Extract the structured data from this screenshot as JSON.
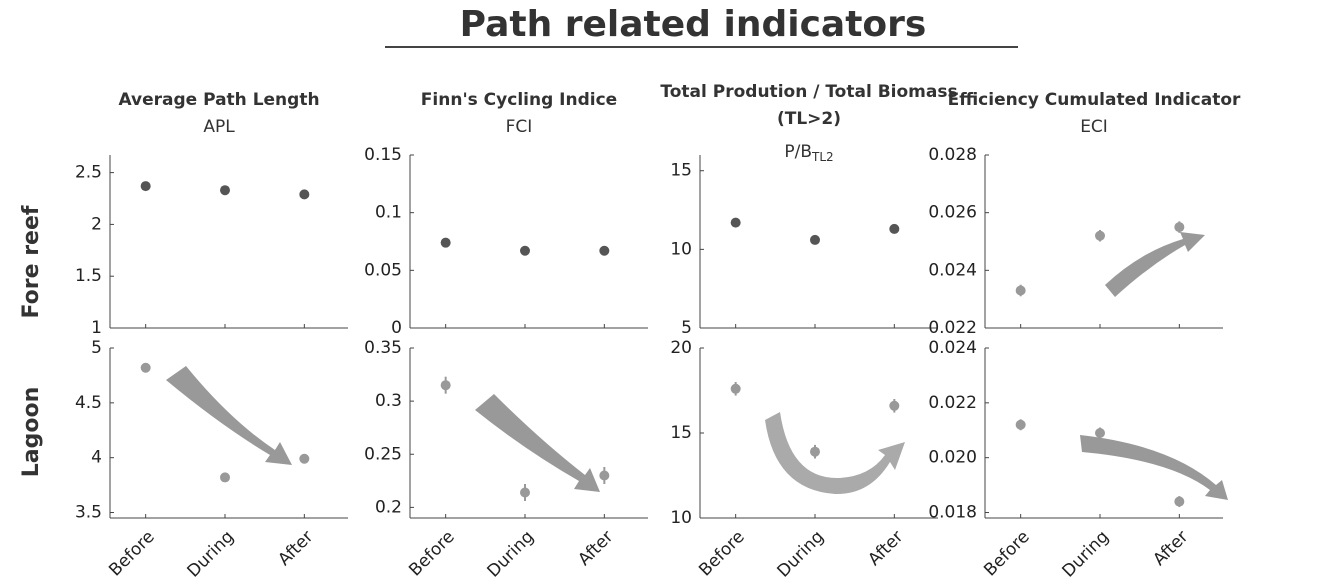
{
  "title": "Path related indicators",
  "rows": [
    "Fore reef",
    "Lagoon"
  ],
  "chart_data": [
    {
      "type": "scatter",
      "title": "Average Path Length",
      "subtitle": "APL",
      "color": "#555555",
      "values": [
        2.37,
        2.33,
        2.29
      ],
      "ylim": [
        1,
        2.67
      ],
      "yticks": [
        1,
        1.5,
        2,
        2.5
      ]
    },
    {
      "type": "scatter",
      "title": "Finn's Cycling Indice",
      "subtitle": "FCI",
      "color": "#555555",
      "values": [
        0.074,
        0.067,
        0.067
      ],
      "ylim": [
        0,
        0.15
      ],
      "yticks": [
        0,
        0.05,
        0.1,
        0.15
      ]
    },
    {
      "type": "scatter",
      "title": [
        "Total Prodution / Total Biomass",
        "(TL>2)"
      ],
      "subtitle": "P/B",
      "subtitle_subscript": "TL2",
      "color": "#555555",
      "values": [
        11.7,
        10.6,
        11.3
      ],
      "ylim": [
        5,
        16
      ],
      "yticks": [
        5,
        10,
        15
      ]
    },
    {
      "type": "scatter",
      "title": "Efficiency Cumulated Indicator",
      "subtitle": "ECI",
      "color": "#999999",
      "values": [
        0.0233,
        0.0252,
        0.0255
      ],
      "errors": [
        0.0002,
        0.0002,
        0.0002
      ],
      "ylim": [
        0.022,
        0.028
      ],
      "yticks": [
        0.022,
        0.024,
        0.026,
        0.028
      ]
    },
    {
      "type": "scatter",
      "categories": [
        "Before",
        "During",
        "After"
      ],
      "color": "#999999",
      "values": [
        4.82,
        3.82,
        3.99
      ],
      "errors": [
        0.03,
        0.03,
        0.03
      ],
      "ylim": [
        3.45,
        5
      ],
      "yticks": [
        3.5,
        4,
        4.5,
        5
      ]
    },
    {
      "type": "scatter",
      "categories": [
        "Before",
        "During",
        "After"
      ],
      "color": "#999999",
      "values": [
        0.315,
        0.214,
        0.23
      ],
      "errors": [
        0.008,
        0.008,
        0.008
      ],
      "ylim": [
        0.19,
        0.35
      ],
      "yticks": [
        0.2,
        0.25,
        0.3,
        0.35
      ]
    },
    {
      "type": "scatter",
      "categories": [
        "Before",
        "During",
        "After"
      ],
      "color": "#999999",
      "values": [
        17.6,
        13.9,
        16.6
      ],
      "errors": [
        0.4,
        0.4,
        0.4
      ],
      "ylim": [
        10,
        20
      ],
      "yticks": [
        10,
        15,
        20
      ]
    },
    {
      "type": "scatter",
      "categories": [
        "Before",
        "During",
        "After"
      ],
      "color": "#999999",
      "values": [
        0.0212,
        0.0209,
        0.0184
      ],
      "errors": [
        0.0002,
        0.0002,
        0.0002
      ],
      "ylim": [
        0.0178,
        0.024
      ],
      "yticks": [
        0.018,
        {
          "value": 0.02,
          "label": "0.020"
        },
        0.022,
        0.024
      ]
    }
  ]
}
